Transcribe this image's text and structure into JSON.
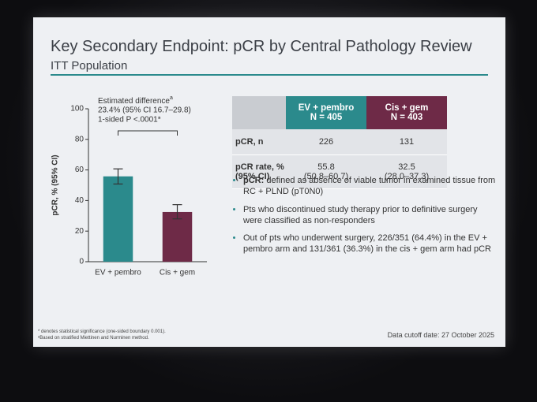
{
  "slide": {
    "title": "Key Secondary Endpoint: pCR by Central Pathology Review",
    "subtitle": "ITT Population",
    "cutoff": "Data cutoff date: 27 October 2025",
    "footnotes": [
      "* denotes statistical significance (one-sided boundary 0.001).",
      "ᵃBased on stratified Miettinen and Nurminen method."
    ]
  },
  "chart_data": {
    "type": "bar",
    "ylabel": "pCR, % (95% CI)",
    "categories": [
      "EV + pembro",
      "Cis + gem"
    ],
    "values": [
      55.8,
      32.5
    ],
    "ci_low": [
      50.8,
      28.0
    ],
    "ci_high": [
      60.7,
      37.3
    ],
    "colors": [
      "#2b8a8c",
      "#6e2a47"
    ],
    "ylim": [
      0,
      100
    ],
    "yticks": [
      0,
      20,
      40,
      60,
      80,
      100
    ],
    "annotation": {
      "label": "Estimated difference",
      "sup": "a",
      "lines": [
        "23.4% (95% CI 16.7–29.8)",
        "1-sided P <.0001*"
      ]
    }
  },
  "table": {
    "columns": [
      {
        "name": "EV + pembro",
        "n": "N = 405"
      },
      {
        "name": "Cis + gem",
        "n": "N = 403"
      }
    ],
    "rows": [
      {
        "label": "pCR, n",
        "cells": [
          [
            "226"
          ],
          [
            "131"
          ]
        ]
      },
      {
        "label": "pCR rate, % (95% CI)",
        "cells": [
          [
            "55.8",
            "(50.8–60.7)"
          ],
          [
            "32.5",
            "(28.0–37.3)"
          ]
        ]
      }
    ]
  },
  "bullets": [
    {
      "lead": "pCR:",
      "text": "defined as absence of viable tumor in examined tissue from RC + PLND (pT0N0)"
    },
    {
      "text": "Pts who discontinued study therapy prior to definitive surgery were classified as non-responders"
    },
    {
      "text": "Out of pts who underwent surgery, 226/351 (64.4%) in the EV + pembro arm and 131/361 (36.3%) in the cis + gem arm had pCR"
    }
  ]
}
